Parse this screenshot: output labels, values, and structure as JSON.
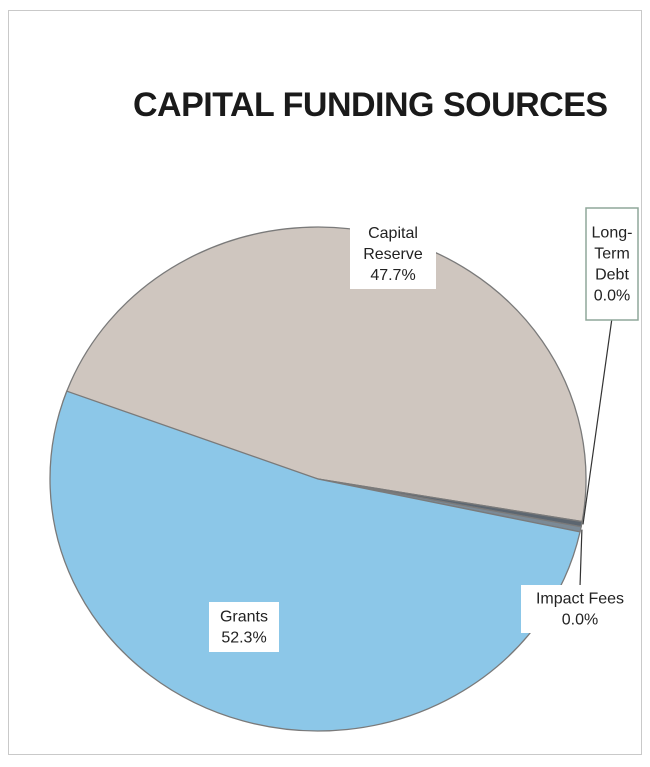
{
  "chart_data": {
    "type": "pie",
    "title": "CAPITAL FUNDING SOURCES",
    "slices": [
      {
        "name": "Capital Reserve",
        "label_lines": [
          "Capital",
          "Reserve"
        ],
        "value": 47.7,
        "value_label": "47.7%",
        "color": "#cfc6bf"
      },
      {
        "name": "Long-Term Debt",
        "label_lines": [
          "Long-",
          "Term",
          "Debt"
        ],
        "value": 0.0,
        "value_label": "0.0%",
        "color": "#5c6670"
      },
      {
        "name": "Impact Fees",
        "label_lines": [
          "Impact Fees"
        ],
        "value": 0.0,
        "value_label": "0.0%",
        "color": "#7b8a96"
      },
      {
        "name": "Grants",
        "label_lines": [
          "Grants"
        ],
        "value": 52.3,
        "value_label": "52.3%",
        "color": "#8cc7e8"
      }
    ],
    "legend": "none",
    "data_labels": "name and percent"
  }
}
